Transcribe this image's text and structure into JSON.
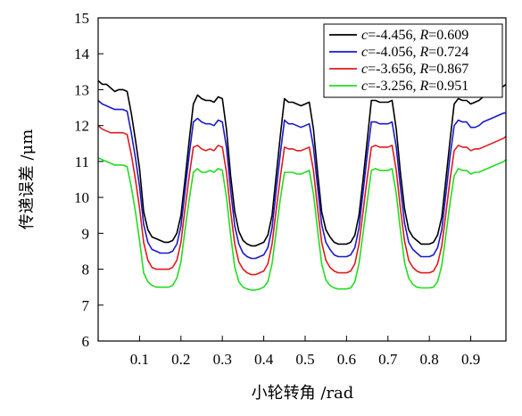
{
  "chart_data": {
    "type": "line",
    "xlabel": "小轮转角 /rad",
    "ylabel": "传递误差 /μm",
    "xlim": [
      0,
      0.985
    ],
    "ylim": [
      6,
      15
    ],
    "x_ticks": [
      "0.1",
      "0.2",
      "0.3",
      "0.4",
      "0.5",
      "0.6",
      "0.7",
      "0.8",
      "0.9"
    ],
    "y_ticks": [
      "6",
      "7",
      "8",
      "9",
      "10",
      "11",
      "12",
      "13",
      "14",
      "15"
    ],
    "grid": false,
    "legend_position": "top-right",
    "x": [
      0.0,
      0.01,
      0.02,
      0.03,
      0.04,
      0.05,
      0.06,
      0.07,
      0.08,
      0.09,
      0.1,
      0.11,
      0.12,
      0.13,
      0.14,
      0.15,
      0.16,
      0.17,
      0.18,
      0.19,
      0.2,
      0.21,
      0.22,
      0.23,
      0.24,
      0.25,
      0.26,
      0.27,
      0.28,
      0.29,
      0.3,
      0.31,
      0.32,
      0.33,
      0.34,
      0.35,
      0.36,
      0.37,
      0.38,
      0.39,
      0.4,
      0.41,
      0.42,
      0.43,
      0.44,
      0.45,
      0.46,
      0.47,
      0.48,
      0.49,
      0.5,
      0.51,
      0.52,
      0.53,
      0.54,
      0.55,
      0.56,
      0.57,
      0.58,
      0.59,
      0.6,
      0.61,
      0.62,
      0.63,
      0.64,
      0.65,
      0.66,
      0.67,
      0.68,
      0.69,
      0.7,
      0.71,
      0.72,
      0.73,
      0.74,
      0.75,
      0.76,
      0.77,
      0.78,
      0.79,
      0.8,
      0.81,
      0.82,
      0.83,
      0.84,
      0.85,
      0.86,
      0.87,
      0.88,
      0.89,
      0.9,
      0.91,
      0.92,
      0.93,
      0.94,
      0.95,
      0.96,
      0.97,
      0.98,
      0.985
    ],
    "series": [
      {
        "name": "c=-4.456, R=0.609",
        "color": "#000000",
        "values": [
          13.25,
          13.15,
          13.15,
          13.05,
          12.95,
          13.0,
          13.0,
          12.95,
          12.35,
          11.6,
          10.8,
          9.6,
          9.1,
          8.9,
          8.85,
          8.8,
          8.75,
          8.75,
          8.8,
          9.0,
          9.5,
          10.5,
          11.6,
          12.6,
          12.85,
          12.75,
          12.7,
          12.7,
          12.65,
          12.8,
          12.75,
          11.9,
          10.6,
          9.6,
          9.05,
          8.8,
          8.7,
          8.65,
          8.65,
          8.7,
          8.75,
          8.95,
          9.5,
          10.6,
          11.7,
          12.75,
          12.65,
          12.65,
          12.6,
          12.55,
          12.6,
          12.65,
          11.9,
          10.7,
          9.6,
          9.1,
          8.9,
          8.75,
          8.7,
          8.7,
          8.7,
          8.75,
          8.95,
          9.5,
          10.5,
          11.6,
          12.7,
          12.7,
          12.65,
          12.65,
          12.65,
          12.7,
          11.9,
          10.7,
          9.7,
          9.1,
          8.9,
          8.8,
          8.7,
          8.7,
          8.7,
          8.75,
          8.95,
          9.45,
          10.5,
          11.6,
          12.6,
          12.75,
          12.7,
          12.7,
          12.6,
          12.65,
          12.7,
          12.8,
          12.9,
          12.95,
          13.0,
          13.05,
          13.1,
          13.15
        ]
      },
      {
        "name": "c=-4.056, R=0.724",
        "color": "#1a1acc",
        "values": [
          12.7,
          12.6,
          12.55,
          12.5,
          12.45,
          12.45,
          12.45,
          12.4,
          11.8,
          11.1,
          10.3,
          9.25,
          8.75,
          8.55,
          8.5,
          8.45,
          8.45,
          8.45,
          8.5,
          8.7,
          9.2,
          10.2,
          11.2,
          12.1,
          12.2,
          12.1,
          12.05,
          12.05,
          12.0,
          12.15,
          12.1,
          11.4,
          10.2,
          9.2,
          8.7,
          8.45,
          8.35,
          8.3,
          8.3,
          8.35,
          8.4,
          8.6,
          9.15,
          10.2,
          11.2,
          12.15,
          12.05,
          12.05,
          12.0,
          11.95,
          12.0,
          12.05,
          11.4,
          10.3,
          9.25,
          8.75,
          8.55,
          8.4,
          8.35,
          8.35,
          8.35,
          8.4,
          8.6,
          9.15,
          10.15,
          11.2,
          12.1,
          12.1,
          12.05,
          12.05,
          12.05,
          12.1,
          11.4,
          10.3,
          9.3,
          8.75,
          8.55,
          8.45,
          8.35,
          8.35,
          8.35,
          8.4,
          8.6,
          9.1,
          10.1,
          11.15,
          12.0,
          12.15,
          12.1,
          12.1,
          11.95,
          11.95,
          12.0,
          12.1,
          12.15,
          12.2,
          12.25,
          12.3,
          12.35,
          12.35
        ]
      },
      {
        "name": "c=-3.656, R=0.867",
        "color": "#e01a1a",
        "values": [
          12.0,
          11.9,
          11.85,
          11.8,
          11.8,
          11.8,
          11.8,
          11.75,
          11.2,
          10.5,
          9.7,
          8.75,
          8.25,
          8.05,
          8.0,
          8.0,
          8.0,
          8.0,
          8.05,
          8.25,
          8.75,
          9.7,
          10.6,
          11.4,
          11.45,
          11.35,
          11.3,
          11.35,
          11.3,
          11.45,
          11.4,
          10.7,
          9.6,
          8.7,
          8.2,
          8.0,
          7.9,
          7.85,
          7.85,
          7.9,
          7.95,
          8.15,
          8.7,
          9.65,
          10.55,
          11.4,
          11.35,
          11.35,
          11.3,
          11.3,
          11.35,
          11.4,
          10.75,
          9.7,
          8.75,
          8.25,
          8.05,
          7.95,
          7.9,
          7.9,
          7.9,
          7.95,
          8.15,
          8.7,
          9.6,
          10.55,
          11.4,
          11.45,
          11.4,
          11.4,
          11.4,
          11.45,
          10.75,
          9.7,
          8.8,
          8.25,
          8.05,
          7.95,
          7.9,
          7.9,
          7.9,
          7.95,
          8.15,
          8.65,
          9.55,
          10.5,
          11.3,
          11.45,
          11.4,
          11.4,
          11.3,
          11.35,
          11.35,
          11.4,
          11.45,
          11.5,
          11.55,
          11.6,
          11.65,
          11.7
        ]
      },
      {
        "name": "c=-3.256, R=0.951",
        "color": "#22dd22",
        "values": [
          11.1,
          11.05,
          11.0,
          10.95,
          10.9,
          10.9,
          10.9,
          10.85,
          10.3,
          9.6,
          8.8,
          7.9,
          7.65,
          7.55,
          7.5,
          7.5,
          7.5,
          7.5,
          7.55,
          7.75,
          8.2,
          9.1,
          9.95,
          10.7,
          10.8,
          10.7,
          10.7,
          10.75,
          10.7,
          10.8,
          10.75,
          10.0,
          8.95,
          8.05,
          7.65,
          7.5,
          7.45,
          7.42,
          7.42,
          7.45,
          7.5,
          7.65,
          8.15,
          9.05,
          9.95,
          10.7,
          10.7,
          10.7,
          10.65,
          10.65,
          10.7,
          10.75,
          10.1,
          9.1,
          8.15,
          7.7,
          7.55,
          7.48,
          7.45,
          7.45,
          7.45,
          7.48,
          7.65,
          8.15,
          9.0,
          9.9,
          10.75,
          10.8,
          10.75,
          10.75,
          10.75,
          10.8,
          10.1,
          9.1,
          8.2,
          7.75,
          7.58,
          7.5,
          7.48,
          7.48,
          7.48,
          7.5,
          7.65,
          8.1,
          8.95,
          9.85,
          10.6,
          10.8,
          10.75,
          10.75,
          10.65,
          10.7,
          10.7,
          10.75,
          10.8,
          10.85,
          10.9,
          10.95,
          11.0,
          11.05
        ]
      }
    ],
    "legend": [
      {
        "c_label": "c",
        "c_value": "=-4.456, ",
        "r_label": "R",
        "r_value": "=0.609"
      },
      {
        "c_label": "c",
        "c_value": "=-4.056, ",
        "r_label": "R",
        "r_value": "=0.724"
      },
      {
        "c_label": "c",
        "c_value": "=-3.656, ",
        "r_label": "R",
        "r_value": "=0.867"
      },
      {
        "c_label": "c",
        "c_value": "=-3.256, ",
        "r_label": "R",
        "r_value": "=0.951"
      }
    ]
  }
}
